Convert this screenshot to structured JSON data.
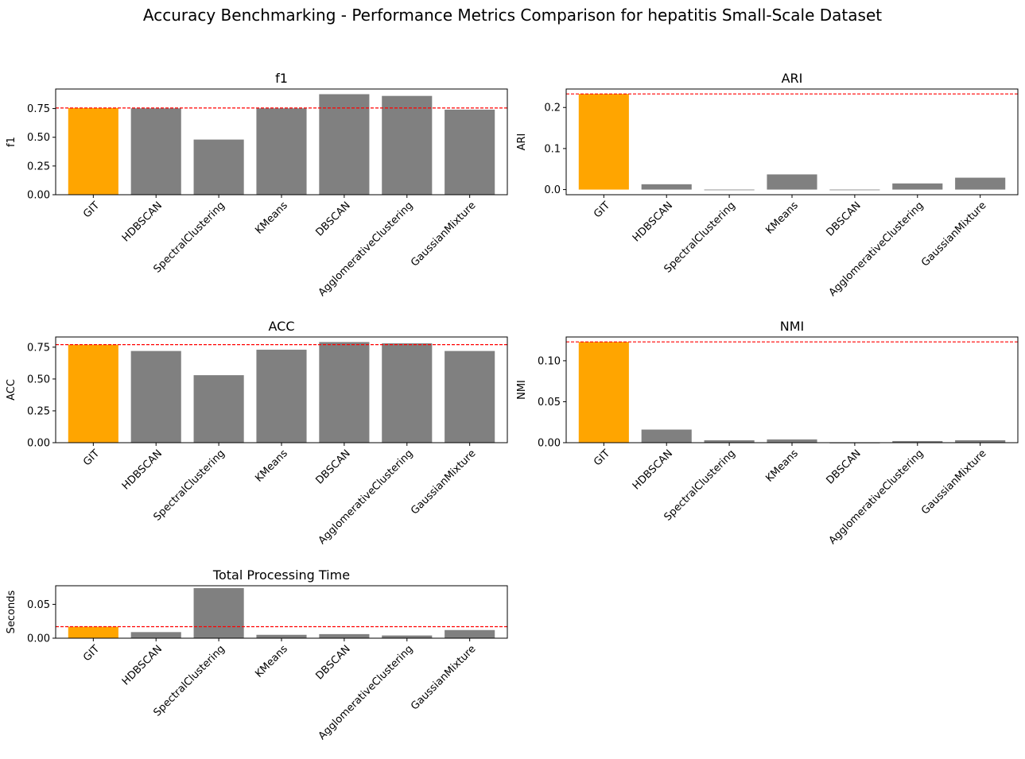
{
  "figure_title": "Accuracy Benchmarking - Performance Metrics Comparison for hepatitis Small-Scale Dataset",
  "colors": {
    "highlight": "#ffa500",
    "bar": "#808080",
    "reference_line": "#ff0000"
  },
  "chart_data": [
    {
      "type": "bar",
      "title": "f1",
      "xlabel": "",
      "ylabel": "f1",
      "categories": [
        "GIT",
        "HDBSCAN",
        "SpectralClustering",
        "KMeans",
        "DBSCAN",
        "AgglomerativeClustering",
        "GaussianMixture"
      ],
      "values": [
        0.755,
        0.752,
        0.48,
        0.752,
        0.875,
        0.86,
        0.74
      ],
      "highlight_index": 0,
      "reference_line": 0.755,
      "ylim": [
        0,
        0.92
      ],
      "yticks": [
        "0.00",
        "0.25",
        "0.50",
        "0.75"
      ],
      "ytick_values": [
        0,
        0.25,
        0.5,
        0.75
      ],
      "grid": false
    },
    {
      "type": "bar",
      "title": "ARI",
      "xlabel": "",
      "ylabel": "ARI",
      "categories": [
        "GIT",
        "HDBSCAN",
        "SpectralClustering",
        "KMeans",
        "DBSCAN",
        "AgglomerativeClustering",
        "GaussianMixture"
      ],
      "values": [
        0.233,
        0.013,
        -0.001,
        0.037,
        0.0,
        0.015,
        0.029
      ],
      "highlight_index": 0,
      "reference_line": 0.233,
      "ylim": [
        -0.0125,
        0.245
      ],
      "yticks": [
        "0.0",
        "0.1",
        "0.2"
      ],
      "ytick_values": [
        0,
        0.1,
        0.2
      ],
      "grid": false
    },
    {
      "type": "bar",
      "title": "ACC",
      "xlabel": "",
      "ylabel": "ACC",
      "categories": [
        "GIT",
        "HDBSCAN",
        "SpectralClustering",
        "KMeans",
        "DBSCAN",
        "AgglomerativeClustering",
        "GaussianMixture"
      ],
      "values": [
        0.77,
        0.72,
        0.53,
        0.73,
        0.79,
        0.78,
        0.72
      ],
      "highlight_index": 0,
      "reference_line": 0.77,
      "ylim": [
        0,
        0.83
      ],
      "yticks": [
        "0.00",
        "0.25",
        "0.50",
        "0.75"
      ],
      "ytick_values": [
        0,
        0.25,
        0.5,
        0.75
      ],
      "grid": false
    },
    {
      "type": "bar",
      "title": "NMI",
      "xlabel": "",
      "ylabel": "NMI",
      "categories": [
        "GIT",
        "HDBSCAN",
        "SpectralClustering",
        "KMeans",
        "DBSCAN",
        "AgglomerativeClustering",
        "GaussianMixture"
      ],
      "values": [
        0.123,
        0.016,
        0.003,
        0.004,
        0.0,
        0.002,
        0.003
      ],
      "highlight_index": 0,
      "reference_line": 0.123,
      "ylim": [
        0,
        0.129
      ],
      "yticks": [
        "0.00",
        "0.05",
        "0.10"
      ],
      "ytick_values": [
        0,
        0.05,
        0.1
      ],
      "grid": false
    },
    {
      "type": "bar",
      "title": "Total Processing Time",
      "xlabel": "",
      "ylabel": "Seconds",
      "categories": [
        "GIT",
        "HDBSCAN",
        "SpectralClustering",
        "KMeans",
        "DBSCAN",
        "AgglomerativeClustering",
        "GaussianMixture"
      ],
      "values": [
        0.017,
        0.009,
        0.074,
        0.005,
        0.006,
        0.004,
        0.012
      ],
      "highlight_index": 0,
      "reference_line": 0.017,
      "ylim": [
        0,
        0.0775
      ],
      "yticks": [
        "0.00",
        "0.05"
      ],
      "ytick_values": [
        0,
        0.05
      ],
      "grid": false
    }
  ]
}
